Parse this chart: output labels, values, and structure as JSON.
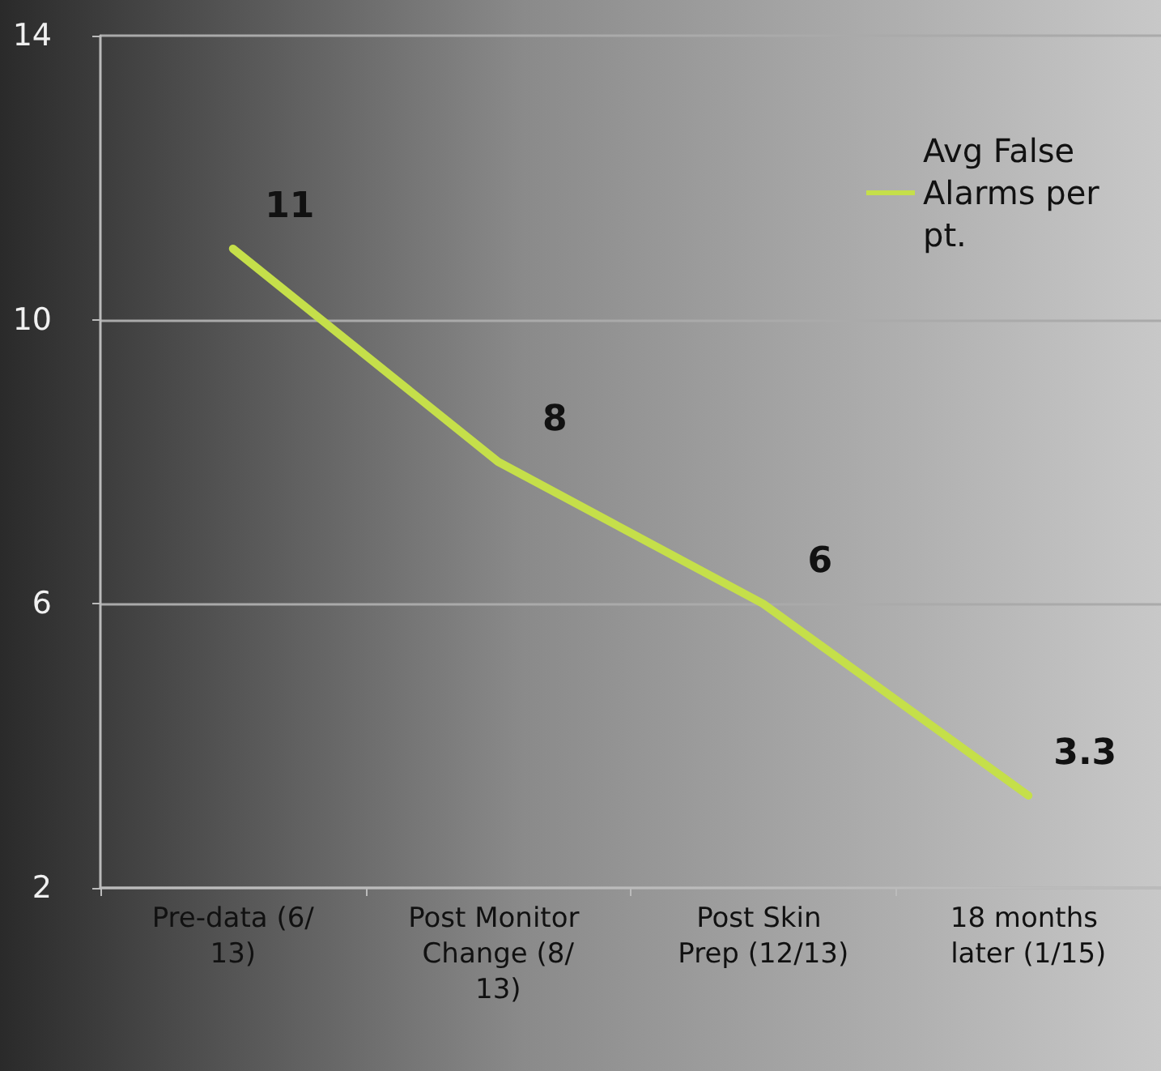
{
  "chart_data": {
    "type": "line",
    "categories": [
      "Pre-data (6/13)",
      "Post Monitor Change (8/13)",
      "Post Skin Prep (12/13)",
      "18 months later (1/15)"
    ],
    "series": [
      {
        "name": "Avg False Alarms per pt.",
        "color": "#c5df4a",
        "values": [
          11,
          8,
          6,
          3.3
        ]
      }
    ],
    "ylim": [
      2,
      14
    ],
    "yticks": [
      2,
      6,
      10,
      14
    ],
    "grid": "y",
    "legend": "top right",
    "data_labels": true,
    "marker": "none"
  }
}
